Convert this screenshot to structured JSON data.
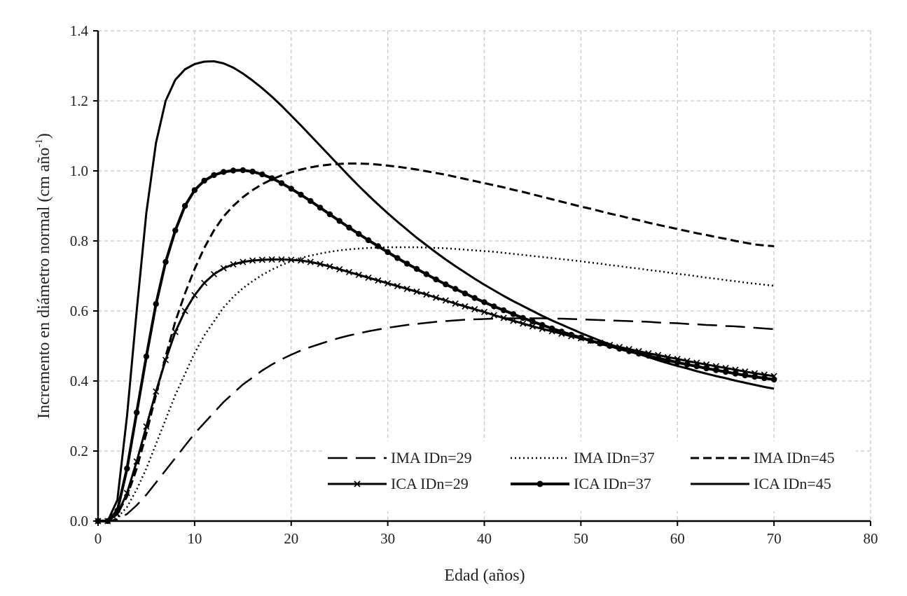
{
  "chart_data": {
    "type": "line",
    "title": "",
    "xlabel": "Edad (años)",
    "ylabel": {
      "text": "Incremento en diámetro normal (cm año",
      "superscript": "-1",
      "suffix": ")"
    },
    "xlim": [
      0,
      80
    ],
    "ylim": [
      0,
      1.4
    ],
    "x_ticks": [
      0,
      10,
      20,
      30,
      40,
      50,
      60,
      70,
      80
    ],
    "y_ticks": [
      0,
      0.2,
      0.4,
      0.6,
      0.8,
      1.0,
      1.2,
      1.4
    ],
    "x_tick_labels": [
      "0",
      "10",
      "20",
      "30",
      "40",
      "50",
      "60",
      "70",
      "80"
    ],
    "y_tick_labels": [
      "0.0",
      "0.2",
      "0.4",
      "0.6",
      "0.8",
      "1.0",
      "1.2",
      "1.4"
    ],
    "grid": true,
    "legend_position": "bottom-right",
    "x": [
      0,
      1,
      2,
      3,
      4,
      5,
      6,
      7,
      8,
      9,
      10,
      11,
      12,
      13,
      14,
      15,
      16,
      17,
      18,
      19,
      20,
      21,
      22,
      23,
      24,
      25,
      26,
      27,
      28,
      29,
      30,
      31,
      32,
      33,
      34,
      35,
      36,
      37,
      38,
      39,
      40,
      41,
      42,
      43,
      44,
      45,
      46,
      47,
      48,
      49,
      50,
      51,
      52,
      53,
      54,
      55,
      56,
      57,
      58,
      59,
      60,
      61,
      62,
      63,
      64,
      65,
      66,
      67,
      68,
      69,
      70
    ],
    "series": [
      {
        "name": "IMA IDn=29",
        "style": "long-dash",
        "color": "#000000",
        "values": [
          0,
          0,
          0.005,
          0.02,
          0.045,
          0.075,
          0.11,
          0.145,
          0.18,
          0.215,
          0.25,
          0.28,
          0.31,
          0.34,
          0.365,
          0.39,
          0.41,
          0.43,
          0.447,
          0.462,
          0.475,
          0.487,
          0.497,
          0.506,
          0.515,
          0.523,
          0.53,
          0.536,
          0.542,
          0.547,
          0.552,
          0.556,
          0.56,
          0.563,
          0.566,
          0.569,
          0.571,
          0.573,
          0.575,
          0.576,
          0.577,
          0.578,
          0.579,
          0.579,
          0.579,
          0.579,
          0.579,
          0.578,
          0.578,
          0.577,
          0.576,
          0.575,
          0.574,
          0.573,
          0.572,
          0.571,
          0.57,
          0.569,
          0.567,
          0.566,
          0.565,
          0.563,
          0.562,
          0.56,
          0.559,
          0.557,
          0.556,
          0.554,
          0.552,
          0.55,
          0.548
        ]
      },
      {
        "name": "IMA IDn=37",
        "style": "dotted",
        "color": "#000000",
        "values": [
          0,
          0,
          0.01,
          0.04,
          0.09,
          0.15,
          0.22,
          0.29,
          0.36,
          0.42,
          0.48,
          0.53,
          0.57,
          0.61,
          0.64,
          0.665,
          0.685,
          0.703,
          0.718,
          0.731,
          0.742,
          0.751,
          0.758,
          0.764,
          0.769,
          0.773,
          0.776,
          0.778,
          0.78,
          0.781,
          0.782,
          0.782,
          0.782,
          0.782,
          0.781,
          0.78,
          0.779,
          0.777,
          0.775,
          0.773,
          0.771,
          0.769,
          0.766,
          0.763,
          0.76,
          0.757,
          0.754,
          0.751,
          0.748,
          0.745,
          0.742,
          0.738,
          0.735,
          0.731,
          0.728,
          0.724,
          0.721,
          0.717,
          0.714,
          0.71,
          0.706,
          0.703,
          0.699,
          0.695,
          0.692,
          0.688,
          0.685,
          0.681,
          0.678,
          0.675,
          0.672
        ]
      },
      {
        "name": "IMA IDn=45",
        "style": "dashed",
        "color": "#000000",
        "values": [
          0,
          0,
          0.02,
          0.07,
          0.15,
          0.25,
          0.36,
          0.47,
          0.57,
          0.65,
          0.72,
          0.78,
          0.83,
          0.87,
          0.9,
          0.925,
          0.945,
          0.962,
          0.976,
          0.987,
          0.996,
          1.004,
          1.01,
          1.015,
          1.018,
          1.02,
          1.021,
          1.021,
          1.02,
          1.018,
          1.015,
          1.012,
          1.008,
          1.004,
          0.999,
          0.994,
          0.989,
          0.983,
          0.977,
          0.971,
          0.965,
          0.959,
          0.953,
          0.946,
          0.94,
          0.933,
          0.926,
          0.919,
          0.912,
          0.905,
          0.898,
          0.892,
          0.885,
          0.878,
          0.872,
          0.865,
          0.859,
          0.852,
          0.846,
          0.84,
          0.834,
          0.828,
          0.822,
          0.817,
          0.811,
          0.806,
          0.8,
          0.795,
          0.79,
          0.787,
          0.785
        ]
      },
      {
        "name": "ICA IDn=29",
        "style": "solid-x",
        "color": "#000000",
        "values": [
          0,
          0,
          0.02,
          0.08,
          0.17,
          0.27,
          0.37,
          0.46,
          0.54,
          0.6,
          0.645,
          0.68,
          0.705,
          0.722,
          0.733,
          0.74,
          0.744,
          0.746,
          0.747,
          0.747,
          0.746,
          0.744,
          0.74,
          0.734,
          0.727,
          0.719,
          0.711,
          0.703,
          0.695,
          0.687,
          0.679,
          0.671,
          0.663,
          0.655,
          0.647,
          0.638,
          0.63,
          0.621,
          0.613,
          0.605,
          0.597,
          0.588,
          0.58,
          0.572,
          0.564,
          0.556,
          0.549,
          0.542,
          0.535,
          0.528,
          0.522,
          0.515,
          0.509,
          0.503,
          0.497,
          0.491,
          0.485,
          0.479,
          0.474,
          0.468,
          0.463,
          0.457,
          0.452,
          0.447,
          0.442,
          0.437,
          0.432,
          0.427,
          0.422,
          0.418,
          0.414
        ]
      },
      {
        "name": "ICA IDn=37",
        "style": "solid-circle",
        "color": "#000000",
        "values": [
          0,
          0,
          0.03,
          0.15,
          0.31,
          0.47,
          0.62,
          0.74,
          0.83,
          0.9,
          0.945,
          0.972,
          0.988,
          0.997,
          1.001,
          1.002,
          0.998,
          0.99,
          0.979,
          0.965,
          0.949,
          0.932,
          0.914,
          0.895,
          0.876,
          0.857,
          0.838,
          0.82,
          0.802,
          0.785,
          0.768,
          0.751,
          0.735,
          0.72,
          0.705,
          0.69,
          0.676,
          0.663,
          0.65,
          0.637,
          0.625,
          0.613,
          0.602,
          0.591,
          0.58,
          0.57,
          0.56,
          0.55,
          0.541,
          0.532,
          0.524,
          0.515,
          0.507,
          0.5,
          0.492,
          0.485,
          0.478,
          0.472,
          0.465,
          0.459,
          0.453,
          0.447,
          0.442,
          0.436,
          0.431,
          0.426,
          0.421,
          0.416,
          0.412,
          0.408,
          0.404
        ]
      },
      {
        "name": "ICA IDn=45",
        "style": "solid",
        "color": "#000000",
        "values": [
          0,
          0,
          0.06,
          0.3,
          0.6,
          0.88,
          1.08,
          1.2,
          1.26,
          1.29,
          1.305,
          1.312,
          1.313,
          1.307,
          1.295,
          1.278,
          1.258,
          1.236,
          1.212,
          1.186,
          1.158,
          1.13,
          1.101,
          1.072,
          1.043,
          1.014,
          0.985,
          0.957,
          0.93,
          0.904,
          0.879,
          0.855,
          0.832,
          0.809,
          0.788,
          0.767,
          0.747,
          0.728,
          0.71,
          0.692,
          0.675,
          0.659,
          0.643,
          0.628,
          0.614,
          0.6,
          0.586,
          0.573,
          0.561,
          0.549,
          0.537,
          0.526,
          0.515,
          0.505,
          0.495,
          0.486,
          0.477,
          0.468,
          0.459,
          0.451,
          0.443,
          0.436,
          0.428,
          0.421,
          0.414,
          0.408,
          0.401,
          0.395,
          0.389,
          0.383,
          0.378
        ]
      }
    ]
  }
}
